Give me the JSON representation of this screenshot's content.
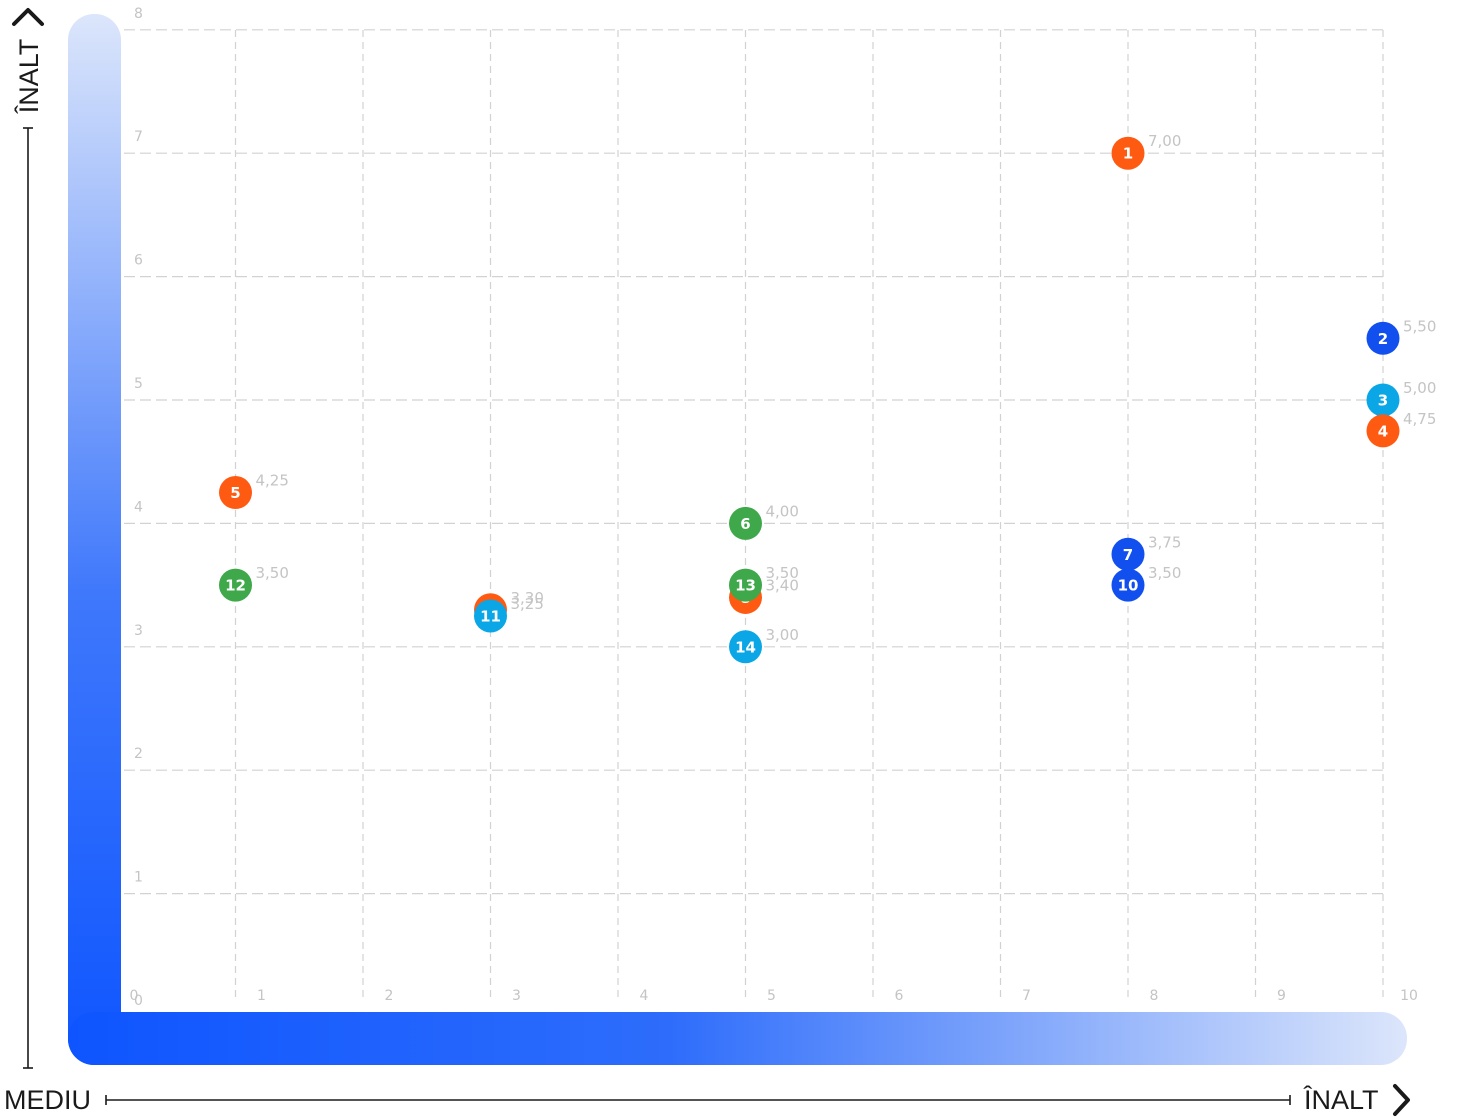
{
  "chart_data": {
    "type": "scatter",
    "xlabel": "ÎNALT",
    "ylabel": "ÎNALT",
    "origin_label": "MEDIU",
    "xlim": [
      0,
      10
    ],
    "ylim": [
      0,
      8
    ],
    "x_ticks": [
      "0",
      "1",
      "2",
      "3",
      "4",
      "5",
      "6",
      "7",
      "8",
      "9",
      "10"
    ],
    "y_ticks": [
      "0",
      "1",
      "2",
      "3",
      "4",
      "5",
      "6",
      "7",
      "8"
    ],
    "grid": true,
    "colors": {
      "orange": "#ff5a12",
      "blue": "#1150ee",
      "cyan": "#0aa6e6",
      "green": "#3ea84a",
      "axis_bar_start": "#0e55ff",
      "axis_bar_end": "#dce6fb",
      "grid": "#d2d2d2",
      "tick": "#c4c4c4"
    },
    "points": [
      {
        "id": "1",
        "x": 8,
        "y": 7.0,
        "value_label": "7,00",
        "color": "orange"
      },
      {
        "id": "2",
        "x": 10,
        "y": 5.5,
        "value_label": "5,50",
        "color": "blue"
      },
      {
        "id": "3",
        "x": 10,
        "y": 5.0,
        "value_label": "5,00",
        "color": "cyan"
      },
      {
        "id": "4",
        "x": 10,
        "y": 4.75,
        "value_label": "4,75",
        "color": "orange"
      },
      {
        "id": "5",
        "x": 1,
        "y": 4.25,
        "value_label": "4,25",
        "color": "orange"
      },
      {
        "id": "6",
        "x": 5,
        "y": 4.0,
        "value_label": "4,00",
        "color": "green"
      },
      {
        "id": "7",
        "x": 8,
        "y": 3.75,
        "value_label": "3,75",
        "color": "blue"
      },
      {
        "id": "8",
        "x": 5,
        "y": 3.4,
        "value_label": "3,40",
        "color": "orange"
      },
      {
        "id": "9",
        "x": 3,
        "y": 3.3,
        "value_label": "3,30",
        "color": "orange"
      },
      {
        "id": "10",
        "x": 8,
        "y": 3.5,
        "value_label": "3,50",
        "color": "blue"
      },
      {
        "id": "11",
        "x": 3,
        "y": 3.25,
        "value_label": "3,25",
        "color": "cyan"
      },
      {
        "id": "12",
        "x": 1,
        "y": 3.5,
        "value_label": "3,50",
        "color": "green"
      },
      {
        "id": "13",
        "x": 5,
        "y": 3.5,
        "value_label": "3,50",
        "color": "green"
      },
      {
        "id": "14",
        "x": 5,
        "y": 3.0,
        "value_label": "3,00",
        "color": "cyan"
      }
    ]
  }
}
